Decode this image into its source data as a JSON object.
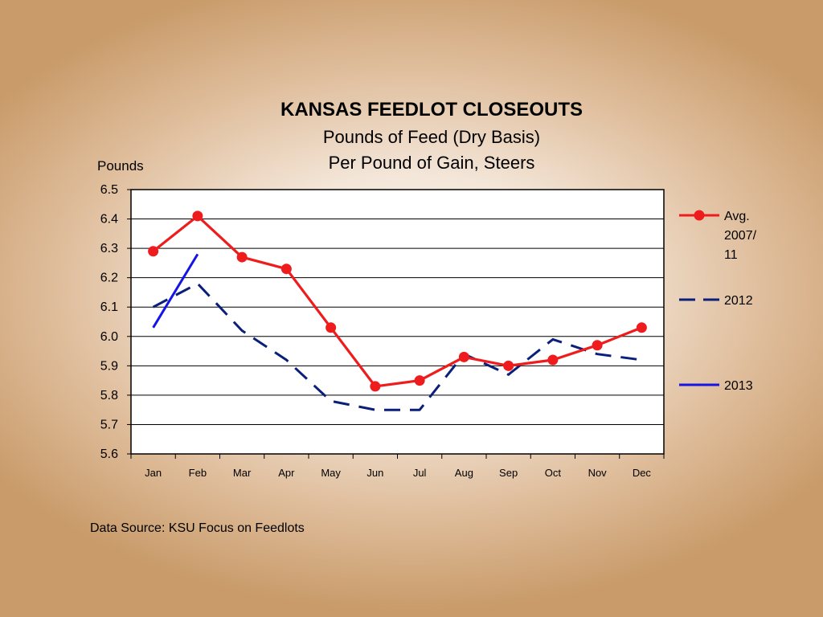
{
  "chart_data": {
    "type": "line",
    "title": "KANSAS  FEEDLOT  CLOSEOUTS",
    "subtitle_lines": [
      "Pounds of Feed (Dry Basis)",
      "Per Pound of Gain, Steers"
    ],
    "ylabel": "Pounds",
    "xlabel": "",
    "ylim": [
      5.6,
      6.5
    ],
    "yticks": [
      "6.5",
      "6.4",
      "6.3",
      "6.2",
      "6.1",
      "6.0",
      "5.9",
      "5.8",
      "5.7",
      "5.6"
    ],
    "grid": true,
    "legend_position": "right",
    "categories": [
      "Jan",
      "Feb",
      "Mar",
      "Apr",
      "May",
      "Jun",
      "Jul",
      "Aug",
      "Sep",
      "Oct",
      "Nov",
      "Dec"
    ],
    "series": [
      {
        "name": "Avg. 2007/11",
        "legend_lines": [
          "Avg.",
          "2007/",
          "11"
        ],
        "color": "#ee1c1c",
        "style": "solid-marker",
        "values": [
          6.29,
          6.41,
          6.27,
          6.23,
          6.03,
          5.83,
          5.85,
          5.93,
          5.9,
          5.92,
          5.97,
          6.03
        ]
      },
      {
        "name": "2012",
        "legend_lines": [
          "2012"
        ],
        "color": "#0a1f7a",
        "style": "dashed",
        "values": [
          6.1,
          6.18,
          6.02,
          5.92,
          5.78,
          5.75,
          5.75,
          5.94,
          5.87,
          5.99,
          5.94,
          5.92
        ]
      },
      {
        "name": "2013",
        "legend_lines": [
          "2013"
        ],
        "color": "#1414e6",
        "style": "solid",
        "values": [
          6.03,
          6.28,
          null,
          null,
          null,
          null,
          null,
          null,
          null,
          null,
          null,
          null
        ]
      }
    ],
    "source": "Data Source: KSU Focus on Feedlots"
  }
}
